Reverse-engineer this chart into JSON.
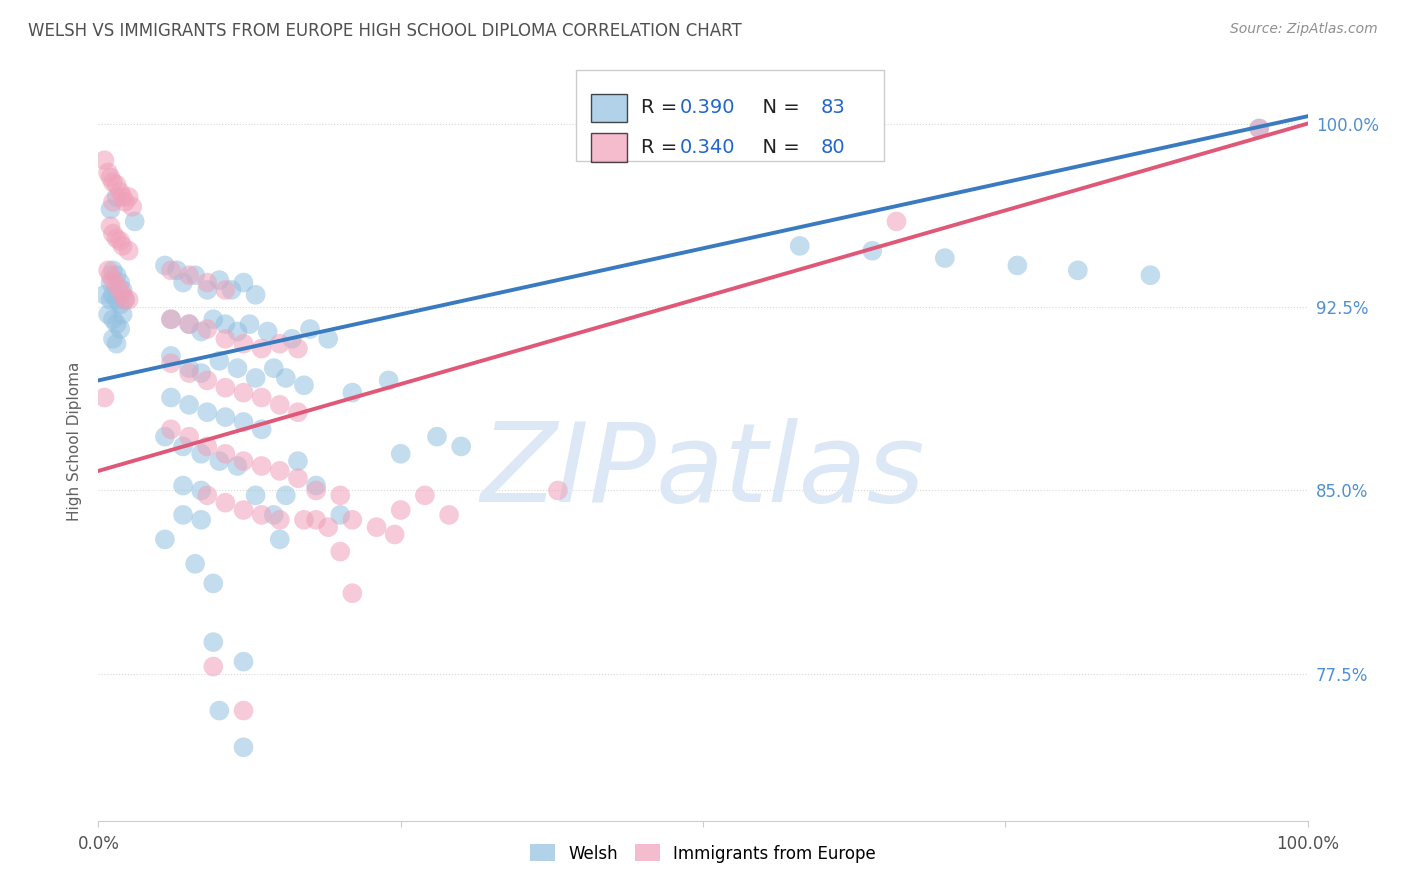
{
  "title": "WELSH VS IMMIGRANTS FROM EUROPE HIGH SCHOOL DIPLOMA CORRELATION CHART",
  "source": "Source: ZipAtlas.com",
  "ylabel": "High School Diploma",
  "ytick_labels": [
    "100.0%",
    "92.5%",
    "85.0%",
    "77.5%"
  ],
  "ytick_values": [
    1.0,
    0.925,
    0.85,
    0.775
  ],
  "xlim": [
    0.0,
    1.0
  ],
  "ylim": [
    0.715,
    1.025
  ],
  "blue_color": "#92c0e0",
  "pink_color": "#f0a0b8",
  "blue_line_color": "#3a7abf",
  "pink_line_color": "#e05878",
  "watermark_text": "ZIPatlas",
  "watermark_color": "#dce8f5",
  "background_color": "#ffffff",
  "grid_color": "#d8d8d8",
  "title_color": "#505050",
  "source_color": "#909090",
  "right_tick_color": "#5090d0",
  "blue_line_x0": 0.0,
  "blue_line_y0": 0.895,
  "blue_line_x1": 1.0,
  "blue_line_y1": 1.003,
  "pink_line_x0": 0.0,
  "pink_line_y0": 0.858,
  "pink_line_x1": 1.0,
  "pink_line_y1": 1.0,
  "blue_scatter": [
    [
      0.005,
      0.93
    ],
    [
      0.008,
      0.922
    ],
    [
      0.01,
      0.935
    ],
    [
      0.01,
      0.928
    ],
    [
      0.012,
      0.94
    ],
    [
      0.012,
      0.93
    ],
    [
      0.012,
      0.92
    ],
    [
      0.012,
      0.912
    ],
    [
      0.015,
      0.938
    ],
    [
      0.015,
      0.928
    ],
    [
      0.015,
      0.918
    ],
    [
      0.015,
      0.91
    ],
    [
      0.018,
      0.935
    ],
    [
      0.018,
      0.926
    ],
    [
      0.018,
      0.916
    ],
    [
      0.02,
      0.932
    ],
    [
      0.02,
      0.922
    ],
    [
      0.022,
      0.928
    ],
    [
      0.01,
      0.965
    ],
    [
      0.015,
      0.97
    ],
    [
      0.03,
      0.96
    ],
    [
      0.055,
      0.942
    ],
    [
      0.065,
      0.94
    ],
    [
      0.07,
      0.935
    ],
    [
      0.08,
      0.938
    ],
    [
      0.09,
      0.932
    ],
    [
      0.1,
      0.936
    ],
    [
      0.11,
      0.932
    ],
    [
      0.12,
      0.935
    ],
    [
      0.13,
      0.93
    ],
    [
      0.06,
      0.92
    ],
    [
      0.075,
      0.918
    ],
    [
      0.085,
      0.915
    ],
    [
      0.095,
      0.92
    ],
    [
      0.105,
      0.918
    ],
    [
      0.115,
      0.915
    ],
    [
      0.125,
      0.918
    ],
    [
      0.14,
      0.915
    ],
    [
      0.16,
      0.912
    ],
    [
      0.175,
      0.916
    ],
    [
      0.19,
      0.912
    ],
    [
      0.06,
      0.905
    ],
    [
      0.075,
      0.9
    ],
    [
      0.085,
      0.898
    ],
    [
      0.1,
      0.903
    ],
    [
      0.115,
      0.9
    ],
    [
      0.13,
      0.896
    ],
    [
      0.145,
      0.9
    ],
    [
      0.155,
      0.896
    ],
    [
      0.17,
      0.893
    ],
    [
      0.06,
      0.888
    ],
    [
      0.075,
      0.885
    ],
    [
      0.09,
      0.882
    ],
    [
      0.105,
      0.88
    ],
    [
      0.12,
      0.878
    ],
    [
      0.135,
      0.875
    ],
    [
      0.055,
      0.872
    ],
    [
      0.07,
      0.868
    ],
    [
      0.085,
      0.865
    ],
    [
      0.1,
      0.862
    ],
    [
      0.115,
      0.86
    ],
    [
      0.07,
      0.852
    ],
    [
      0.085,
      0.85
    ],
    [
      0.07,
      0.84
    ],
    [
      0.085,
      0.838
    ],
    [
      0.13,
      0.848
    ],
    [
      0.155,
      0.848
    ],
    [
      0.145,
      0.84
    ],
    [
      0.055,
      0.83
    ],
    [
      0.08,
      0.82
    ],
    [
      0.095,
      0.812
    ],
    [
      0.15,
      0.83
    ],
    [
      0.2,
      0.84
    ],
    [
      0.165,
      0.862
    ],
    [
      0.28,
      0.872
    ],
    [
      0.3,
      0.868
    ],
    [
      0.18,
      0.852
    ],
    [
      0.25,
      0.865
    ],
    [
      0.21,
      0.89
    ],
    [
      0.24,
      0.895
    ],
    [
      0.095,
      0.788
    ],
    [
      0.12,
      0.78
    ],
    [
      0.1,
      0.76
    ],
    [
      0.12,
      0.745
    ],
    [
      0.58,
      0.95
    ],
    [
      0.64,
      0.948
    ],
    [
      0.7,
      0.945
    ],
    [
      0.76,
      0.942
    ],
    [
      0.81,
      0.94
    ],
    [
      0.87,
      0.938
    ],
    [
      0.96,
      0.998
    ]
  ],
  "pink_scatter": [
    [
      0.005,
      0.985
    ],
    [
      0.008,
      0.98
    ],
    [
      0.01,
      0.978
    ],
    [
      0.012,
      0.976
    ],
    [
      0.012,
      0.968
    ],
    [
      0.015,
      0.975
    ],
    [
      0.018,
      0.972
    ],
    [
      0.02,
      0.97
    ],
    [
      0.022,
      0.968
    ],
    [
      0.025,
      0.97
    ],
    [
      0.028,
      0.966
    ],
    [
      0.01,
      0.958
    ],
    [
      0.012,
      0.955
    ],
    [
      0.015,
      0.953
    ],
    [
      0.018,
      0.952
    ],
    [
      0.02,
      0.95
    ],
    [
      0.025,
      0.948
    ],
    [
      0.008,
      0.94
    ],
    [
      0.01,
      0.938
    ],
    [
      0.012,
      0.936
    ],
    [
      0.015,
      0.934
    ],
    [
      0.018,
      0.932
    ],
    [
      0.02,
      0.93
    ],
    [
      0.022,
      0.928
    ],
    [
      0.025,
      0.928
    ],
    [
      0.06,
      0.94
    ],
    [
      0.075,
      0.938
    ],
    [
      0.09,
      0.935
    ],
    [
      0.105,
      0.932
    ],
    [
      0.06,
      0.92
    ],
    [
      0.075,
      0.918
    ],
    [
      0.09,
      0.916
    ],
    [
      0.105,
      0.912
    ],
    [
      0.12,
      0.91
    ],
    [
      0.135,
      0.908
    ],
    [
      0.15,
      0.91
    ],
    [
      0.165,
      0.908
    ],
    [
      0.06,
      0.902
    ],
    [
      0.075,
      0.898
    ],
    [
      0.09,
      0.895
    ],
    [
      0.105,
      0.892
    ],
    [
      0.12,
      0.89
    ],
    [
      0.135,
      0.888
    ],
    [
      0.15,
      0.885
    ],
    [
      0.165,
      0.882
    ],
    [
      0.06,
      0.875
    ],
    [
      0.075,
      0.872
    ],
    [
      0.09,
      0.868
    ],
    [
      0.105,
      0.865
    ],
    [
      0.12,
      0.862
    ],
    [
      0.135,
      0.86
    ],
    [
      0.15,
      0.858
    ],
    [
      0.165,
      0.855
    ],
    [
      0.09,
      0.848
    ],
    [
      0.105,
      0.845
    ],
    [
      0.12,
      0.842
    ],
    [
      0.135,
      0.84
    ],
    [
      0.15,
      0.838
    ],
    [
      0.18,
      0.85
    ],
    [
      0.2,
      0.848
    ],
    [
      0.17,
      0.838
    ],
    [
      0.19,
      0.835
    ],
    [
      0.21,
      0.838
    ],
    [
      0.23,
      0.835
    ],
    [
      0.2,
      0.825
    ],
    [
      0.25,
      0.842
    ],
    [
      0.21,
      0.808
    ],
    [
      0.095,
      0.778
    ],
    [
      0.12,
      0.76
    ],
    [
      0.18,
      0.838
    ],
    [
      0.27,
      0.848
    ],
    [
      0.29,
      0.84
    ],
    [
      0.245,
      0.832
    ],
    [
      0.38,
      0.85
    ],
    [
      0.005,
      0.888
    ],
    [
      0.66,
      0.96
    ],
    [
      0.96,
      0.998
    ]
  ]
}
